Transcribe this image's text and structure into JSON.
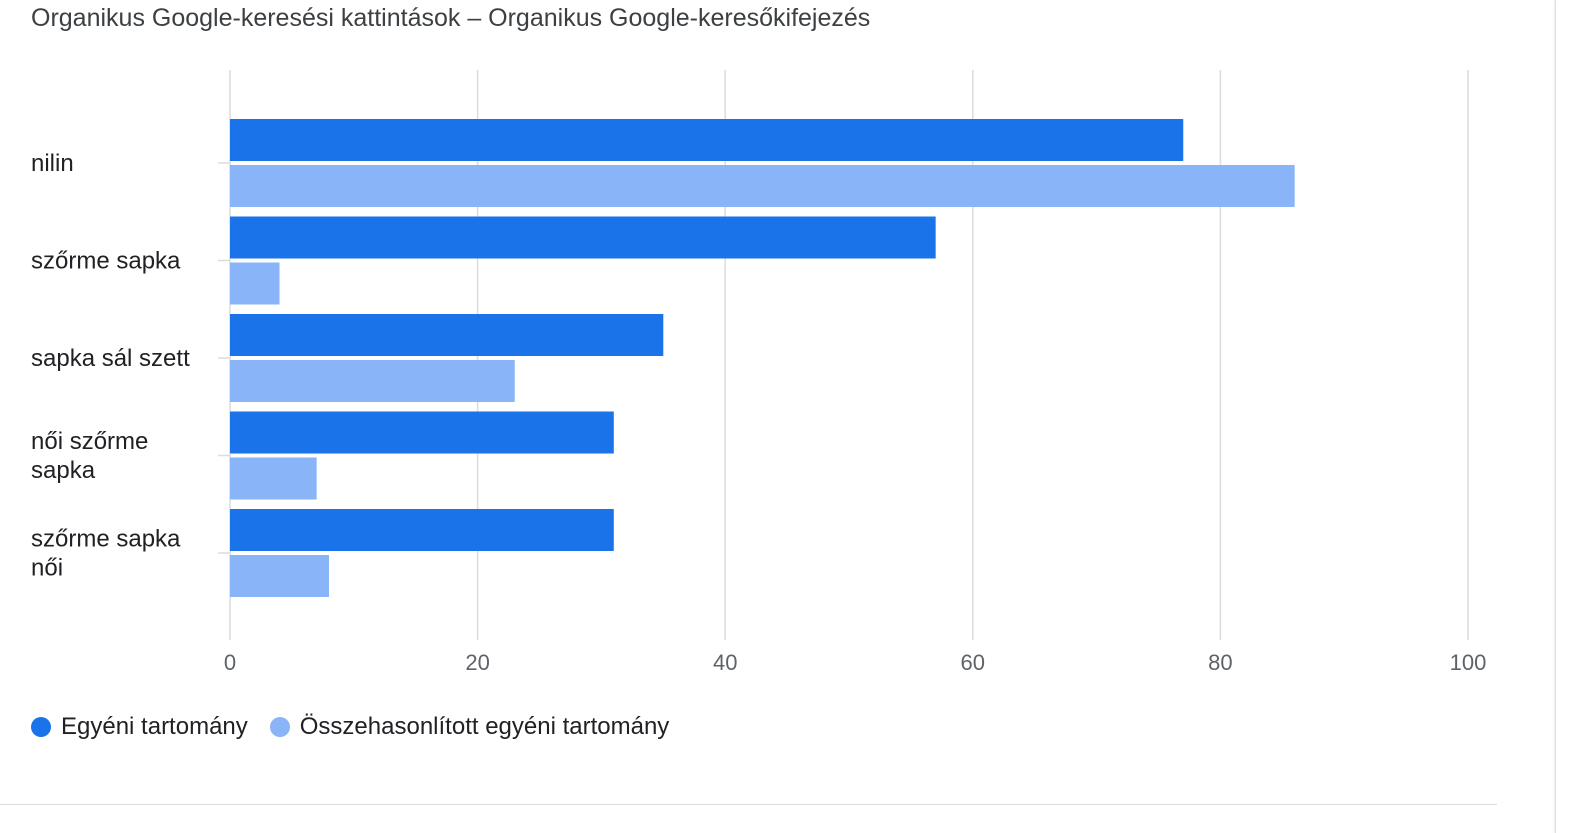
{
  "chart_data": {
    "type": "bar",
    "orientation": "horizontal",
    "title": "Organikus Google-keresési kattintások – Organikus Google-keresőkifejezés",
    "categories": [
      [
        "nilin"
      ],
      [
        "szőrme sapka"
      ],
      [
        "sapka sál szett"
      ],
      [
        "női szőrme",
        "sapka"
      ],
      [
        "szőrme sapka",
        "női"
      ]
    ],
    "series": [
      {
        "name": "Egyéni tartomány",
        "color": "#1a73e8",
        "values": [
          77,
          57,
          35,
          31,
          31
        ]
      },
      {
        "name": "Összehasonlított egyéni tartomány",
        "color": "#8ab4f8",
        "values": [
          86,
          4,
          23,
          7,
          8
        ]
      }
    ],
    "xlim": [
      0,
      100
    ],
    "xticks": [
      "0",
      "20",
      "40",
      "60",
      "80",
      "100"
    ],
    "grid": true,
    "legend_position": "bottom-left"
  }
}
